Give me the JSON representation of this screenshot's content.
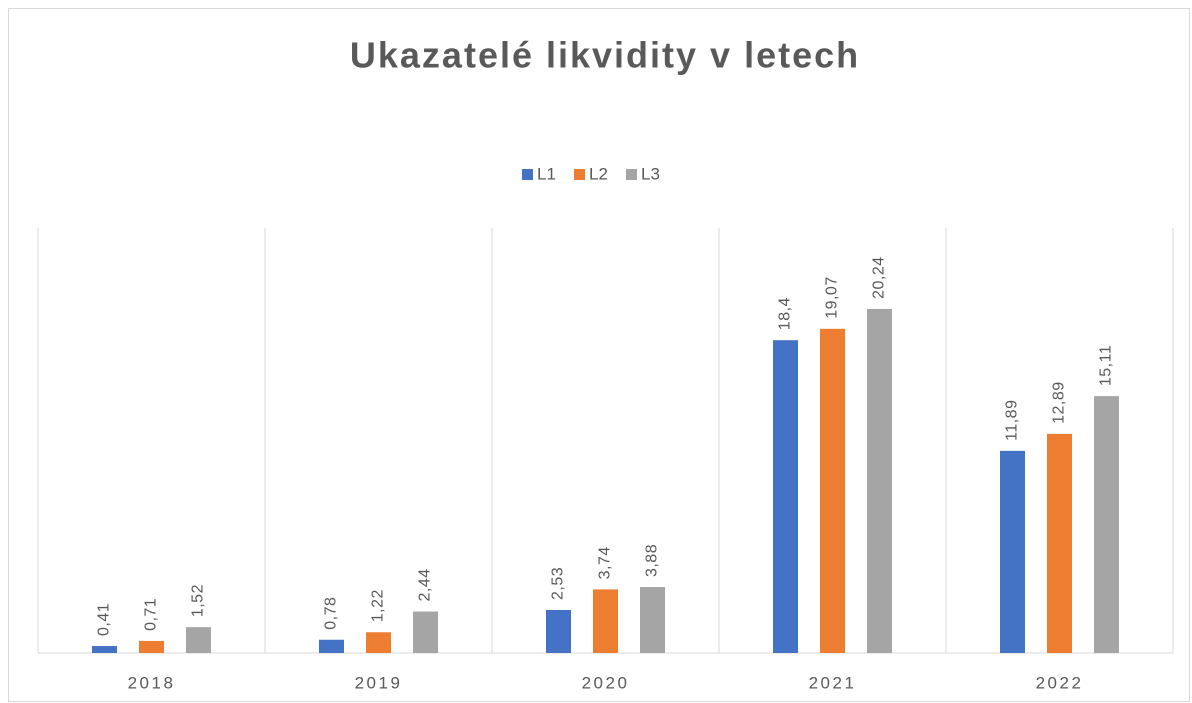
{
  "chart_data": {
    "type": "bar",
    "title": "Ukazatelé likvidity v letech",
    "categories": [
      "2018",
      "2019",
      "2020",
      "2021",
      "2022"
    ],
    "series": [
      {
        "name": "L1",
        "color": "#4472c4",
        "values": [
          0.41,
          0.78,
          2.53,
          18.4,
          11.89
        ],
        "value_labels": [
          "0,41",
          "0,78",
          "2,53",
          "18,4",
          "11,89"
        ]
      },
      {
        "name": "L2",
        "color": "#ed7d31",
        "values": [
          0.71,
          1.22,
          3.74,
          19.07,
          12.89
        ],
        "value_labels": [
          "0,71",
          "1,22",
          "3,74",
          "19,07",
          "12,89"
        ]
      },
      {
        "name": "L3",
        "color": "#a5a5a5",
        "values": [
          1.52,
          2.44,
          3.88,
          20.24,
          15.11
        ],
        "value_labels": [
          "1,52",
          "2,44",
          "3,88",
          "20,24",
          "15,11"
        ]
      }
    ],
    "ylim": [
      0,
      25
    ],
    "legend": "top"
  }
}
